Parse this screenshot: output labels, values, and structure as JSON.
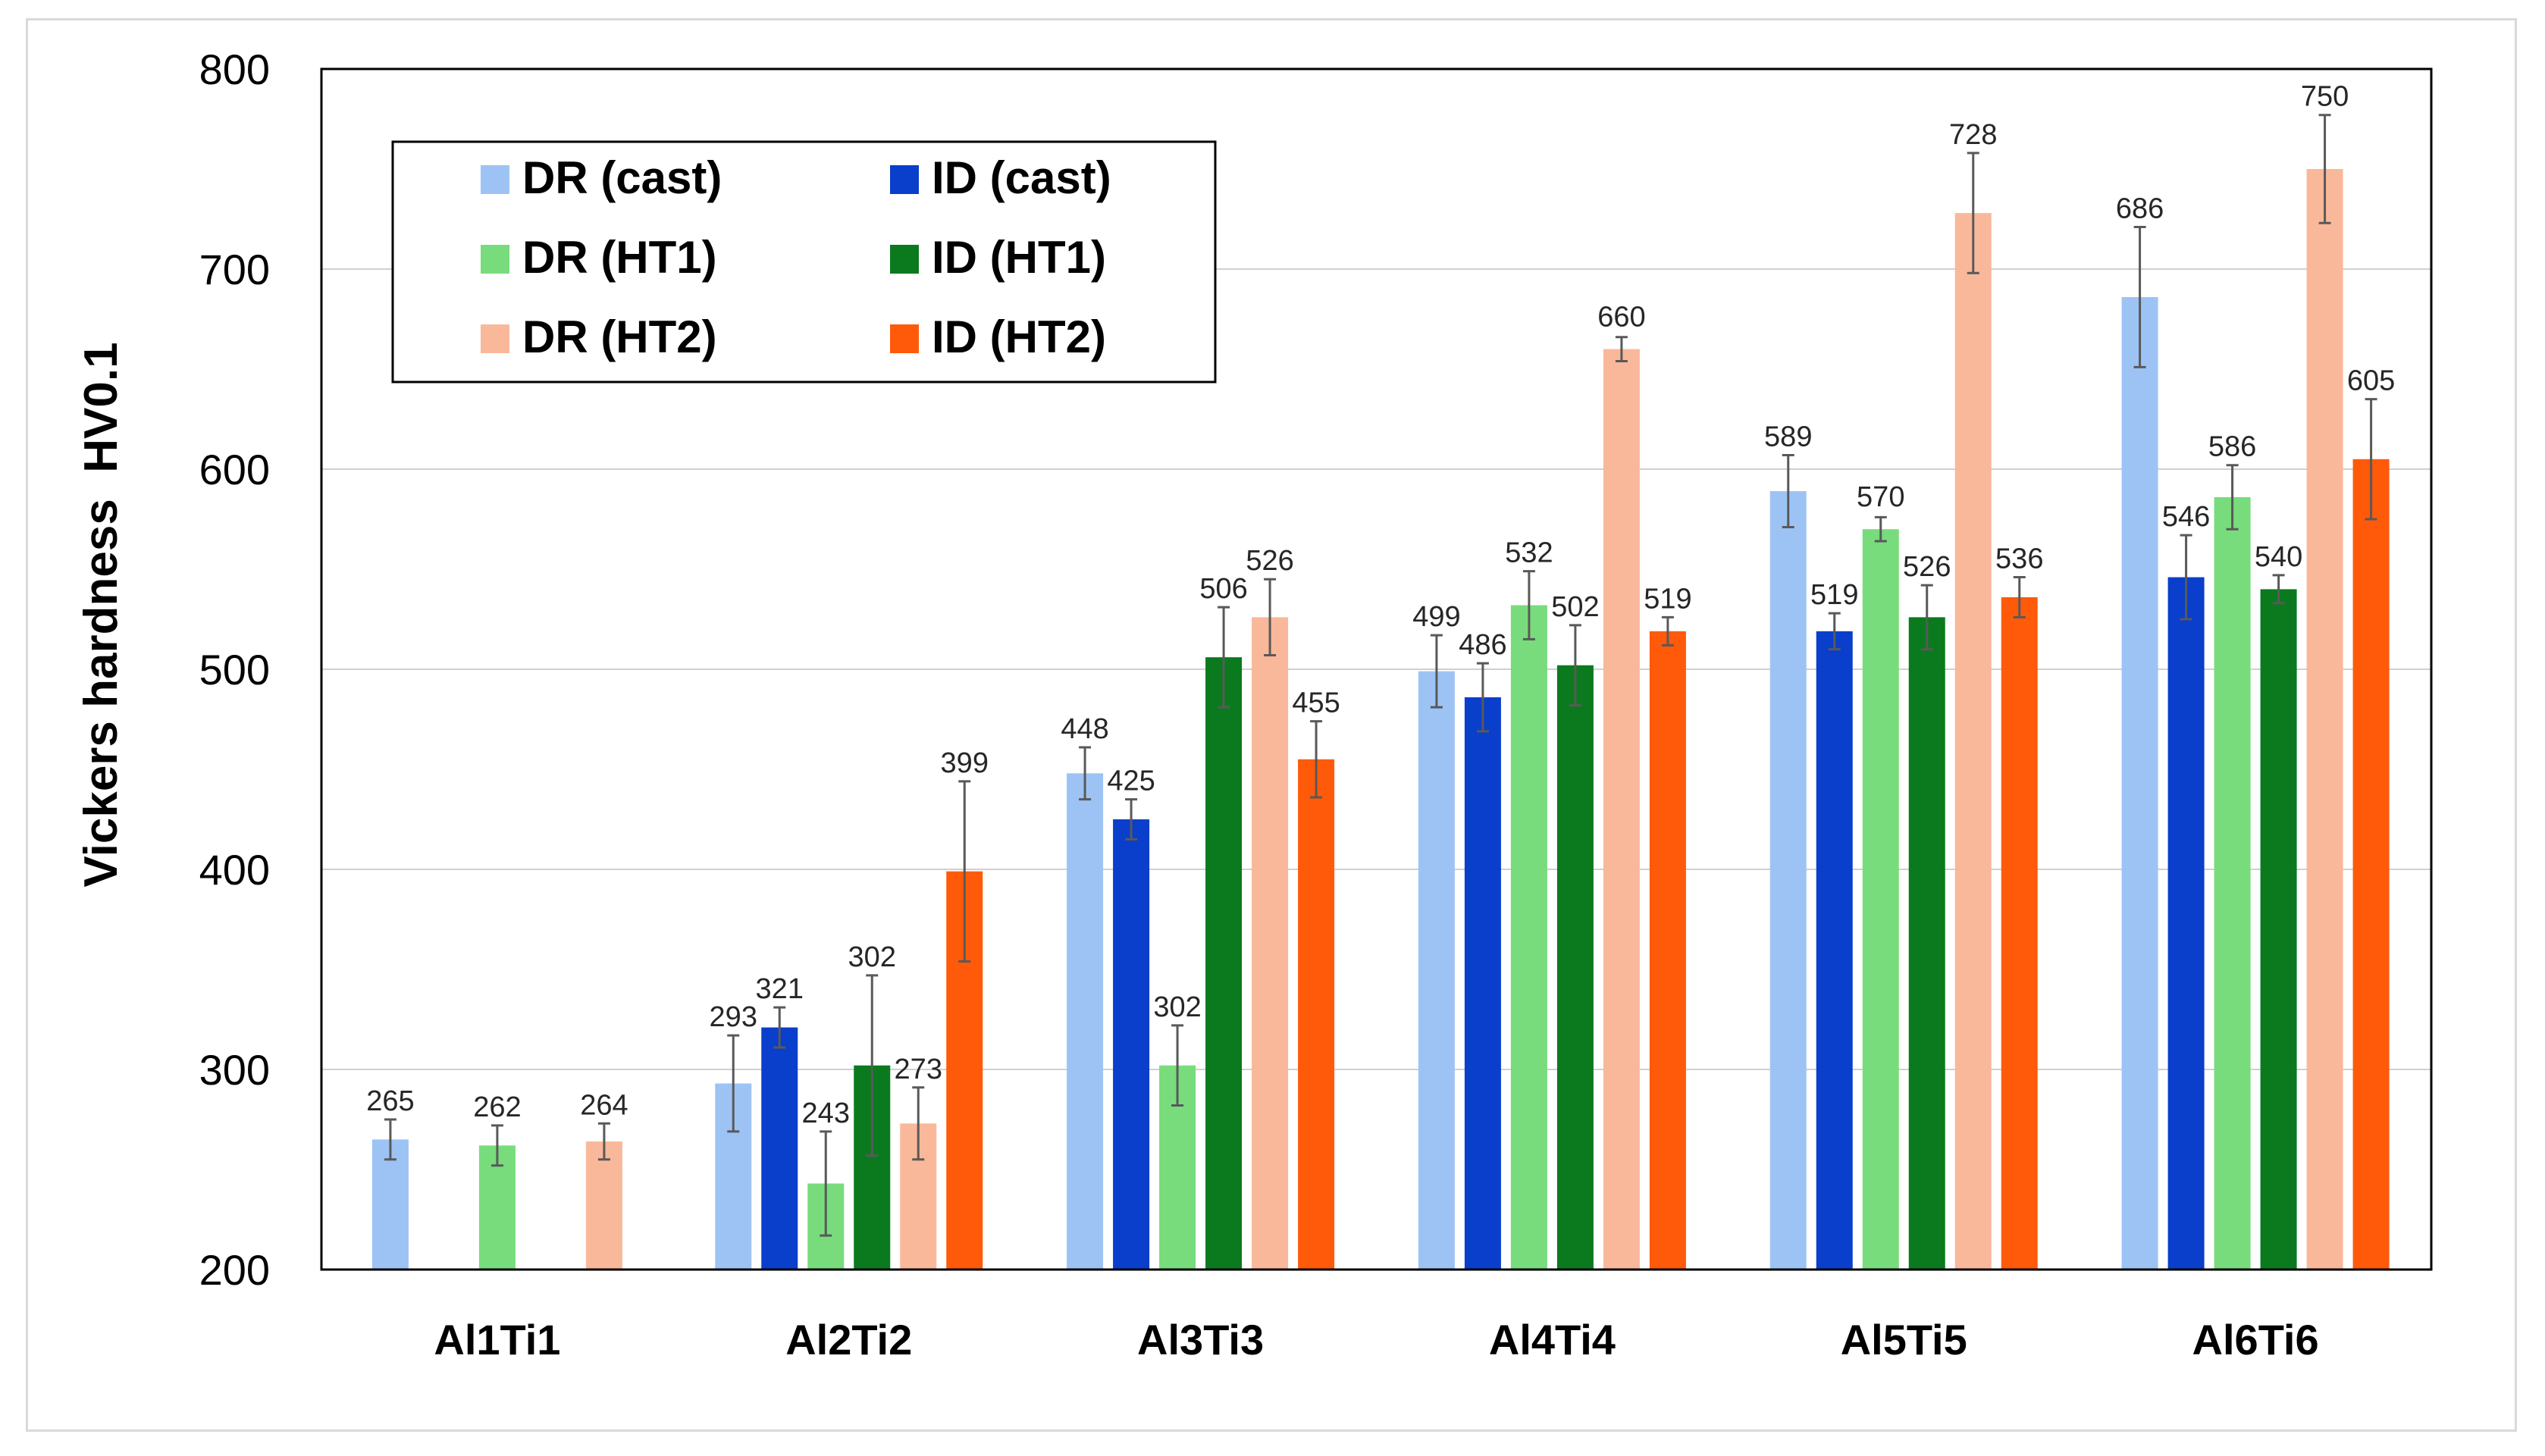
{
  "chart_data": {
    "type": "bar",
    "title": "",
    "xlabel": "",
    "ylabel": "Vickers hardness  HV0.1",
    "ylim": [
      200,
      800
    ],
    "yticks": [
      200,
      300,
      400,
      500,
      600,
      700,
      800
    ],
    "grid": true,
    "legend_position": "top-left",
    "categories": [
      "Al1Ti1",
      "Al2Ti2",
      "Al3Ti3",
      "Al4Ti4",
      "Al5Ti5",
      "Al6Ti6"
    ],
    "series": [
      {
        "name": "DR (cast)",
        "color": "#9dc3f5",
        "values": [
          265,
          293,
          448,
          499,
          589,
          686
        ],
        "errors": [
          10,
          24,
          13,
          18,
          18,
          35
        ]
      },
      {
        "name": "ID (cast)",
        "color": "#0a3fcc",
        "values": [
          null,
          321,
          425,
          486,
          519,
          546
        ],
        "errors": [
          null,
          10,
          10,
          17,
          9,
          21
        ]
      },
      {
        "name": "DR (HT1)",
        "color": "#78dc7c",
        "values": [
          262,
          243,
          302,
          532,
          570,
          586
        ],
        "errors": [
          10,
          26,
          20,
          17,
          6,
          16
        ]
      },
      {
        "name": "ID (HT1)",
        "color": "#0b7a1e",
        "values": [
          null,
          302,
          506,
          502,
          526,
          540
        ],
        "errors": [
          null,
          45,
          25,
          20,
          16,
          7
        ]
      },
      {
        "name": "DR (HT2)",
        "color": "#fab89a",
        "values": [
          264,
          273,
          526,
          660,
          728,
          750
        ],
        "errors": [
          9,
          18,
          19,
          6,
          30,
          27
        ]
      },
      {
        "name": "ID (HT2)",
        "color": "#ff5a0a",
        "values": [
          null,
          399,
          455,
          519,
          536,
          605
        ],
        "errors": [
          null,
          45,
          19,
          7,
          10,
          30
        ]
      }
    ]
  }
}
